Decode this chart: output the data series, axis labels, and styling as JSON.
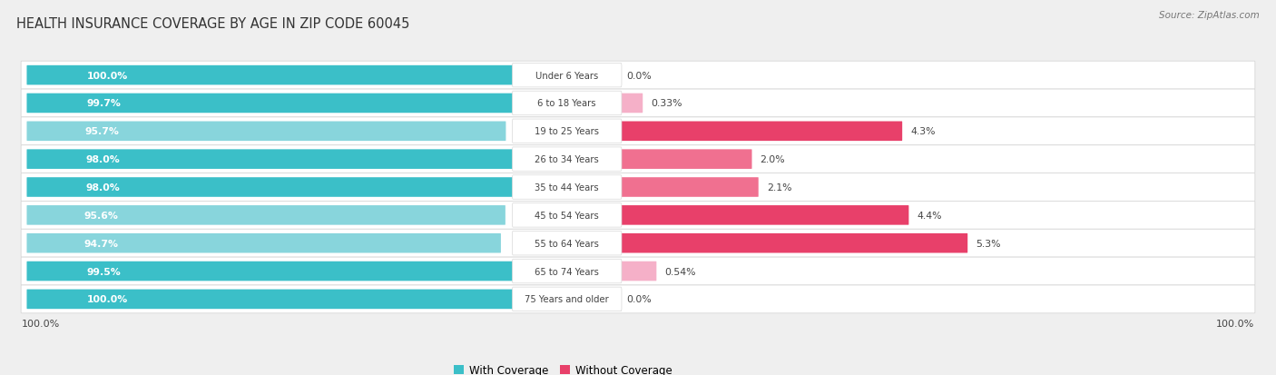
{
  "title": "HEALTH INSURANCE COVERAGE BY AGE IN ZIP CODE 60045",
  "source": "Source: ZipAtlas.com",
  "categories": [
    "Under 6 Years",
    "6 to 18 Years",
    "19 to 25 Years",
    "26 to 34 Years",
    "35 to 44 Years",
    "45 to 54 Years",
    "55 to 64 Years",
    "65 to 74 Years",
    "75 Years and older"
  ],
  "with_coverage": [
    100.0,
    99.7,
    95.7,
    98.0,
    98.0,
    95.6,
    94.7,
    99.5,
    100.0
  ],
  "without_coverage": [
    0.0,
    0.33,
    4.3,
    2.0,
    2.1,
    4.4,
    5.3,
    0.54,
    0.0
  ],
  "with_labels": [
    "100.0%",
    "99.7%",
    "95.7%",
    "98.0%",
    "98.0%",
    "95.6%",
    "94.7%",
    "99.5%",
    "100.0%"
  ],
  "without_labels": [
    "0.0%",
    "0.33%",
    "4.3%",
    "2.0%",
    "2.1%",
    "4.4%",
    "5.3%",
    "0.54%",
    "0.0%"
  ],
  "color_with": "#3bbfc8",
  "color_with_light": "#88d5dc",
  "color_without_dark": "#e8406a",
  "color_without_mid": "#f07090",
  "color_without_light": "#f5b0c8",
  "bg_color": "#efefef",
  "row_bg": "#ffffff",
  "row_border": "#d8d8d8",
  "title_color": "#333333",
  "source_color": "#777777",
  "label_white": "#ffffff",
  "label_dark": "#444444",
  "bottom_label": "100.0%",
  "legend_with": "With Coverage",
  "legend_without": "Without Coverage",
  "with_coverage_colors": [
    "#3bbfc8",
    "#3bbfc8",
    "#88d5dc",
    "#3bbfc8",
    "#3bbfc8",
    "#88d5dc",
    "#88d5dc",
    "#3bbfc8",
    "#3bbfc8"
  ],
  "without_coverage_colors": [
    "#f5b0c8",
    "#f5b0c8",
    "#e8406a",
    "#f07090",
    "#f07090",
    "#e8406a",
    "#e8406a",
    "#f5b0c8",
    "#f5b0c8"
  ]
}
